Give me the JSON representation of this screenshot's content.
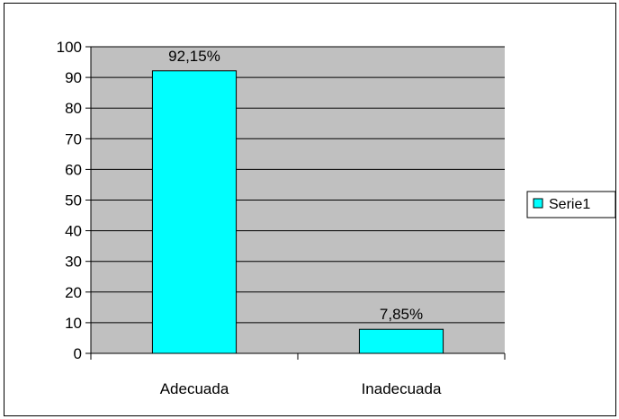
{
  "chart_data": {
    "type": "bar",
    "categories": [
      "Adecuada",
      "Inadecuada"
    ],
    "series": [
      {
        "name": "Serie1",
        "values": [
          92.15,
          7.85
        ],
        "data_labels": [
          "92,15%",
          "7,85%"
        ],
        "color": "#00ffff"
      }
    ],
    "title": "",
    "xlabel": "",
    "ylabel": "",
    "ylim": [
      0,
      100
    ],
    "yticks": [
      0,
      10,
      20,
      30,
      40,
      50,
      60,
      70,
      80,
      90,
      100
    ],
    "grid": true,
    "legend_position": "right",
    "plot_background": "#c0c0c0"
  }
}
